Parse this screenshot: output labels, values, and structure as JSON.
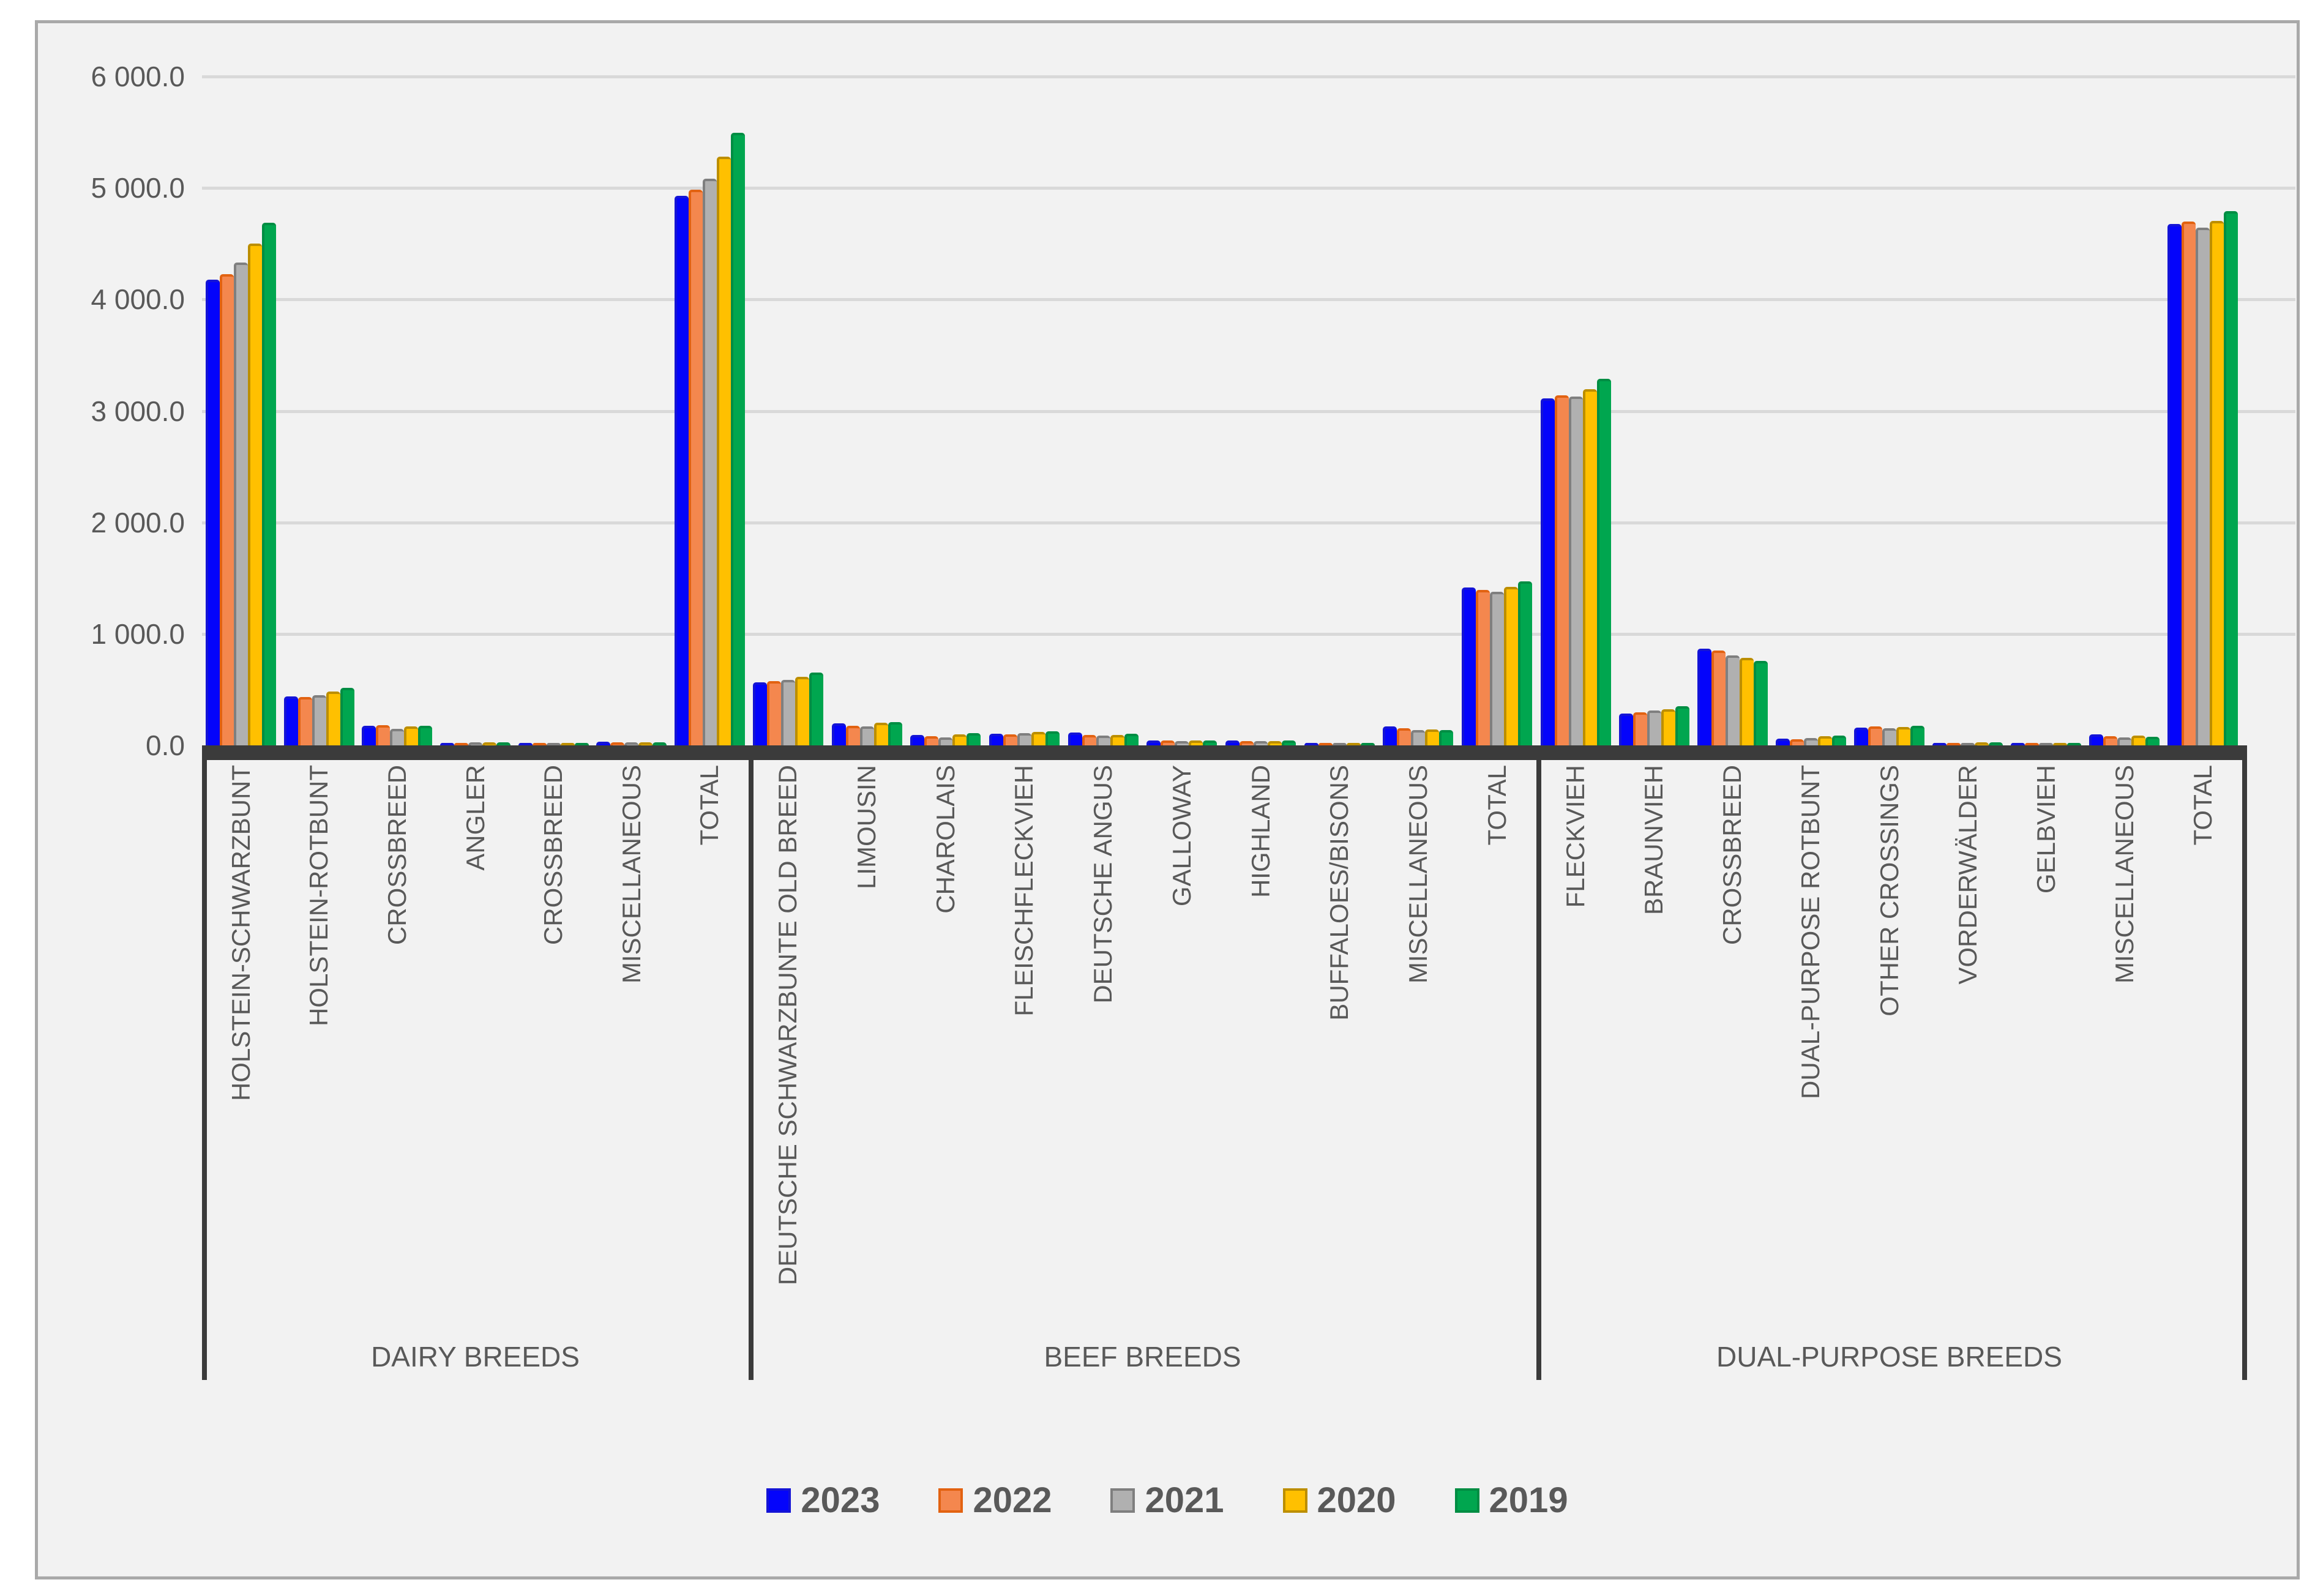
{
  "chart_data": {
    "type": "bar",
    "title": "",
    "xlabel": "",
    "ylabel": "",
    "grid": true,
    "legend_position": "bottom",
    "y_axis": {
      "min": 0,
      "max": 6000,
      "tick_interval": 1000,
      "tick_values": [
        0,
        1000,
        2000,
        3000,
        4000,
        5000,
        6000
      ],
      "tick_labels": [
        "0.0",
        "1 000.0",
        "2 000.0",
        "3 000.0",
        "4 000.0",
        "5 000.0",
        "6 000.0"
      ]
    },
    "series": [
      {
        "name": "2023",
        "fill": "#0404FB",
        "border": "#1414D6"
      },
      {
        "name": "2022",
        "fill": "#F4874E",
        "border": "#E26211"
      },
      {
        "name": "2021",
        "fill": "#B0B0B0",
        "border": "#7F7F7F"
      },
      {
        "name": "2020",
        "fill": "#FFC000",
        "border": "#BC8E00"
      },
      {
        "name": "2019",
        "fill": "#00A64F",
        "border": "#008D43"
      }
    ],
    "sections": [
      {
        "label": "DAIRY BREEDS",
        "categories": [
          {
            "name": "HOLSTEIN-SCHWARZBUNT",
            "values": [
              4175,
              4225,
              4330,
              4500,
              4690
            ]
          },
          {
            "name": "HOLSTEIN-ROTBUNT",
            "values": [
              440,
              433,
              450,
              482,
              515
            ]
          },
          {
            "name": "CROSSBREED",
            "values": [
              176,
              180,
              150,
              172,
              176
            ]
          },
          {
            "name": "ANGLER",
            "values": [
              22,
              24,
              26,
              28,
              30
            ]
          },
          {
            "name": "CROSSBREED",
            "values": [
              12,
              13,
              14,
              16,
              18
            ]
          },
          {
            "name": "MISCELLANEOUS",
            "values": [
              32,
              30,
              28,
              27,
              26
            ]
          },
          {
            "name": "TOTAL",
            "values": [
              4930,
              4985,
              5085,
              5280,
              5495
            ]
          }
        ]
      },
      {
        "label": "BEEF BREEDS",
        "categories": [
          {
            "name": "DEUTSCHE SCHWARZBUNTE OLD BREED",
            "values": [
              565,
              575,
              587,
              616,
              651
            ]
          },
          {
            "name": "LIMOUSIN",
            "values": [
              196,
              178,
              168,
              204,
              210
            ]
          },
          {
            "name": "CHAROLAIS",
            "values": [
              91,
              80,
              70,
              100,
              112
            ]
          },
          {
            "name": "FLEISCHFLECKVIEH",
            "values": [
              107,
              100,
              108,
              122,
              126
            ]
          },
          {
            "name": "DEUTSCHE ANGUS",
            "values": [
              113,
              96,
              86,
              96,
              105
            ]
          },
          {
            "name": "GALLOWAY",
            "values": [
              45,
              42,
              40,
              43,
              45
            ]
          },
          {
            "name": "HIGHLAND",
            "values": [
              42,
              40,
              38,
              40,
              42
            ]
          },
          {
            "name": "BUFFALOES/BISONS",
            "values": [
              3,
              3,
              3,
              4,
              4
            ]
          },
          {
            "name": "MISCELLANEOUS",
            "values": [
              168,
              151,
              136,
              140,
              138
            ]
          },
          {
            "name": "TOTAL",
            "values": [
              1419,
              1394,
              1376,
              1424,
              1469
            ]
          }
        ]
      },
      {
        "label": "DUAL-PURPOSE BREEDS",
        "categories": [
          {
            "name": "FLECKVIEH",
            "values": [
              3110,
              3138,
              3127,
              3195,
              3289
            ]
          },
          {
            "name": "BRAUNVIEH",
            "values": [
              288,
              298,
              312,
              322,
              352
            ]
          },
          {
            "name": "CROSSBREED",
            "values": [
              869,
              849,
              809,
              784,
              760
            ]
          },
          {
            "name": "DUAL-PURPOSE ROTBUNT",
            "values": [
              63,
              55,
              66,
              80,
              90
            ]
          },
          {
            "name": "OTHER CROSSINGS",
            "values": [
              158,
              168,
              155,
              164,
              177
            ]
          },
          {
            "name": "VORDERWÄLDER",
            "values": [
              18,
              20,
              22,
              25,
              28
            ]
          },
          {
            "name": "GELBVIEH",
            "values": [
              6,
              7,
              8,
              9,
              10
            ]
          },
          {
            "name": "MISCELLANEOUS",
            "values": [
              100,
              85,
              70,
              88,
              78
            ]
          },
          {
            "name": "TOTAL",
            "values": [
              4676,
              4701,
              4645,
              4706,
              4795
            ]
          }
        ]
      }
    ],
    "colors": {
      "plot_background": "#F2F2F2",
      "page_background": "#FFFFFF",
      "panel_border": "#A9A9A9",
      "gridline": "#D9D9D9",
      "axis_line": "#3B3B3B",
      "text": "#595959"
    }
  }
}
